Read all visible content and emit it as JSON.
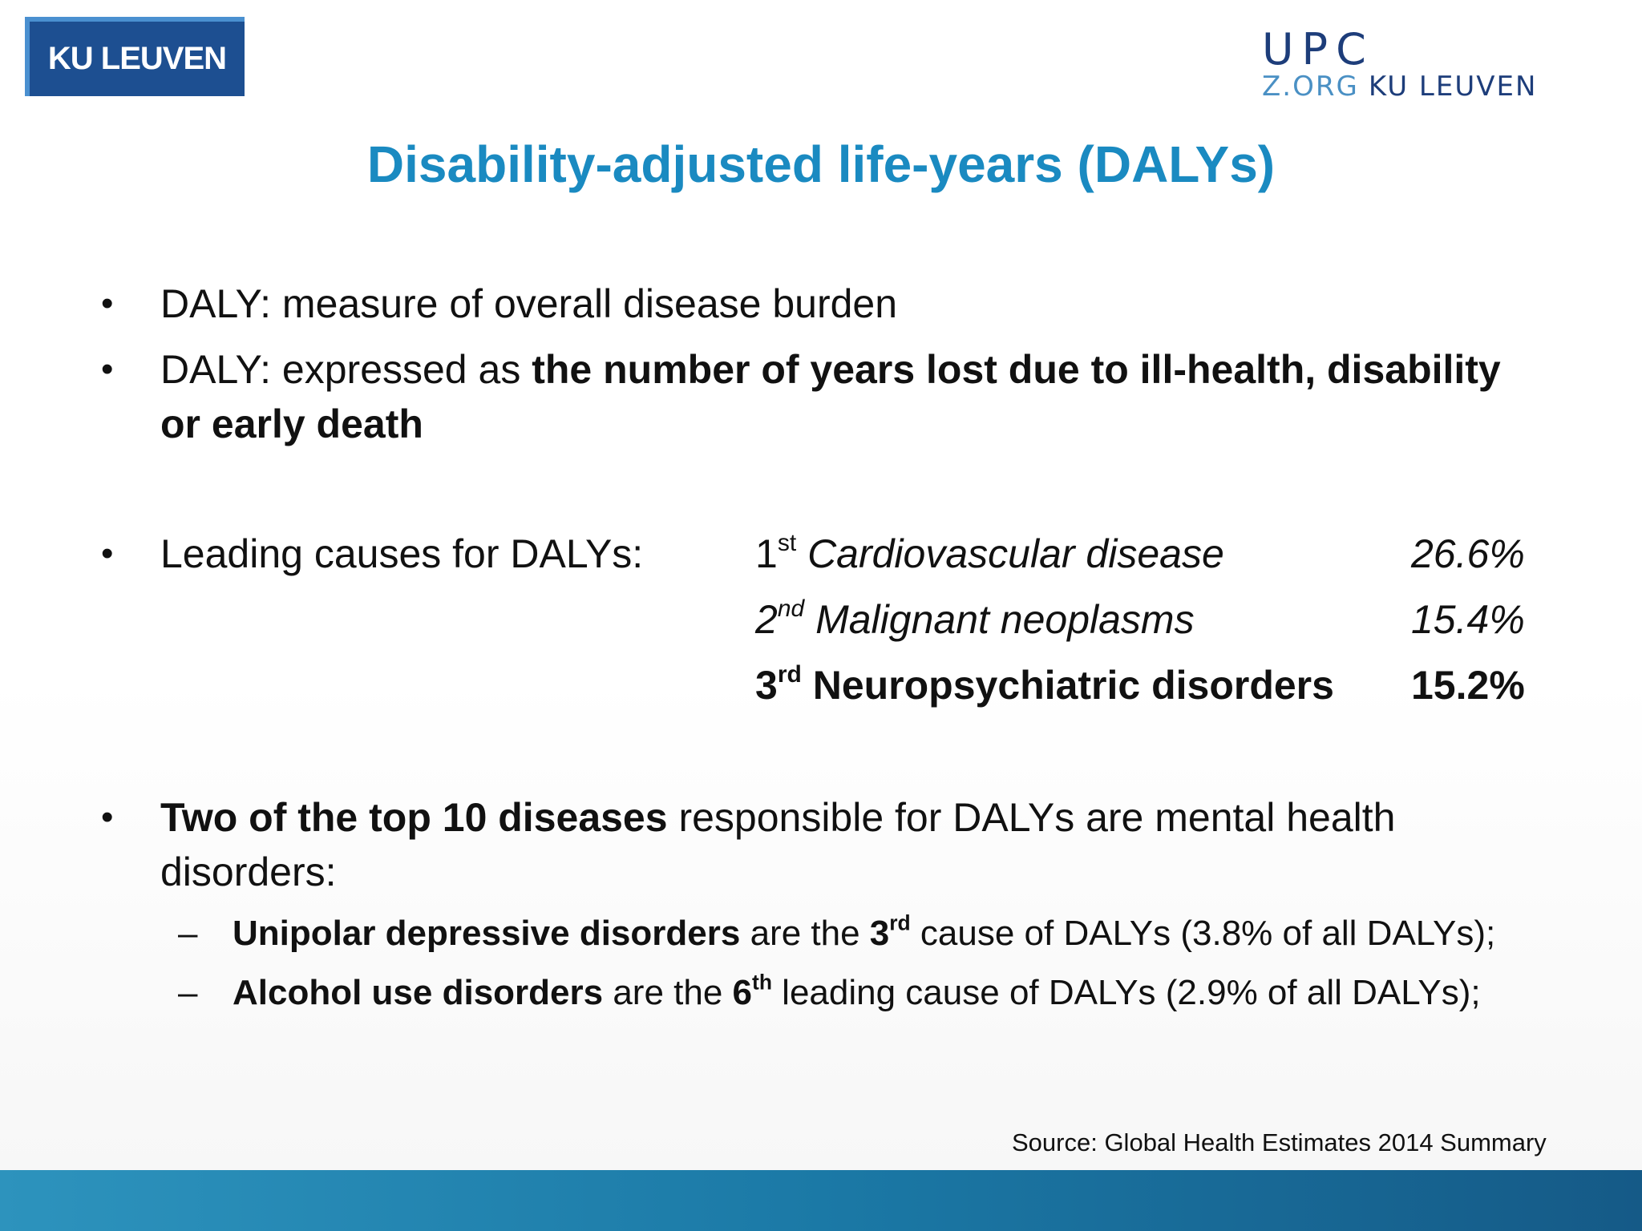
{
  "logos": {
    "left": "KU LEUVEN",
    "right_top": "UPC",
    "right_bottom_a": "Z.ORG",
    "right_bottom_b": "KU LEUVEN"
  },
  "title": "Disability-adjusted life-years (DALYs)",
  "bullets": {
    "b1": "DALY: measure of overall disease burden",
    "b2_plain": "DALY: expressed as ",
    "b2_bold": "the number of years lost due to ill-health, disability or early death",
    "b3": "Leading causes for DALYs:",
    "b4_bold": "Two of the top 10 diseases",
    "b4_plain": " responsible for DALYs are mental health disorders:"
  },
  "leading_causes": [
    {
      "rank": "1",
      "suffix": "st",
      "name": "Cardiovascular disease",
      "pct": "26.6%"
    },
    {
      "rank": "2",
      "suffix": "nd",
      "name": "Malignant neoplasms",
      "pct": "15.4%"
    },
    {
      "rank": "3",
      "suffix": "rd",
      "name": "Neuropsychiatric disorders",
      "pct": "15.2%"
    }
  ],
  "sub_bullets": [
    {
      "dash": "–",
      "bold": "Unipolar depressive disorders",
      "mid": " are the ",
      "rank": "3",
      "suffix": "rd",
      "rest": " cause of DALYs (3.8% of all DALYs);"
    },
    {
      "dash": "–",
      "bold": "Alcohol use disorders",
      "mid": " are the ",
      "rank": "6",
      "suffix": "th",
      "rest": " leading cause of DALYs (2.9% of all DALYs);"
    }
  ],
  "bullet_char": "•",
  "source": "Source: Global Health Estimates 2014 Summary",
  "colors": {
    "title": "#1a8ac1",
    "logo_left_bg": "#1d4f91",
    "band": "#1b79a6"
  }
}
